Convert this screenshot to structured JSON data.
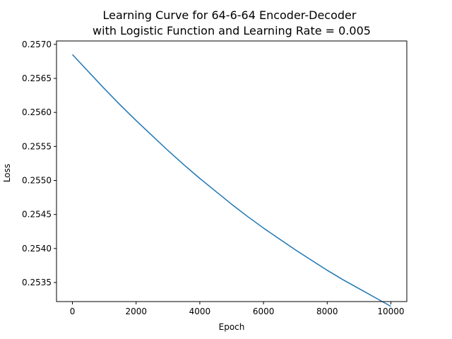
{
  "chart_data": {
    "type": "line",
    "title": "Learning Curve for 64-6-64 Encoder-Decoder",
    "subtitle": "with Logistic Function and Learning Rate = 0.005",
    "xlabel": "Epoch",
    "ylabel": "Loss",
    "xlim": [
      -500,
      10500
    ],
    "ylim": [
      0.25322,
      0.25705
    ],
    "x_ticks": [
      0,
      2000,
      4000,
      6000,
      8000,
      10000
    ],
    "x_tick_labels": [
      "0",
      "2000",
      "4000",
      "6000",
      "8000",
      "10000"
    ],
    "y_ticks": [
      0.2535,
      0.254,
      0.2545,
      0.255,
      0.2555,
      0.256,
      0.2565,
      0.257
    ],
    "y_tick_labels": [
      "0.2535",
      "0.2540",
      "0.2545",
      "0.2550",
      "0.2555",
      "0.2560",
      "0.2565",
      "0.2570"
    ],
    "grid": false,
    "series": [
      {
        "color": "#1f77b4",
        "x": [
          0,
          500,
          1000,
          1500,
          2000,
          2500,
          3000,
          3500,
          4000,
          4500,
          5000,
          5500,
          6000,
          6500,
          7000,
          7500,
          8000,
          8500,
          9000,
          9500,
          10000
        ],
        "y": [
          0.25685,
          0.2566,
          0.25635,
          0.25611,
          0.25588,
          0.25566,
          0.25544,
          0.25523,
          0.25503,
          0.25484,
          0.25465,
          0.25447,
          0.2543,
          0.25414,
          0.25398,
          0.25383,
          0.25368,
          0.25354,
          0.25341,
          0.25328,
          0.25315
        ]
      }
    ]
  }
}
